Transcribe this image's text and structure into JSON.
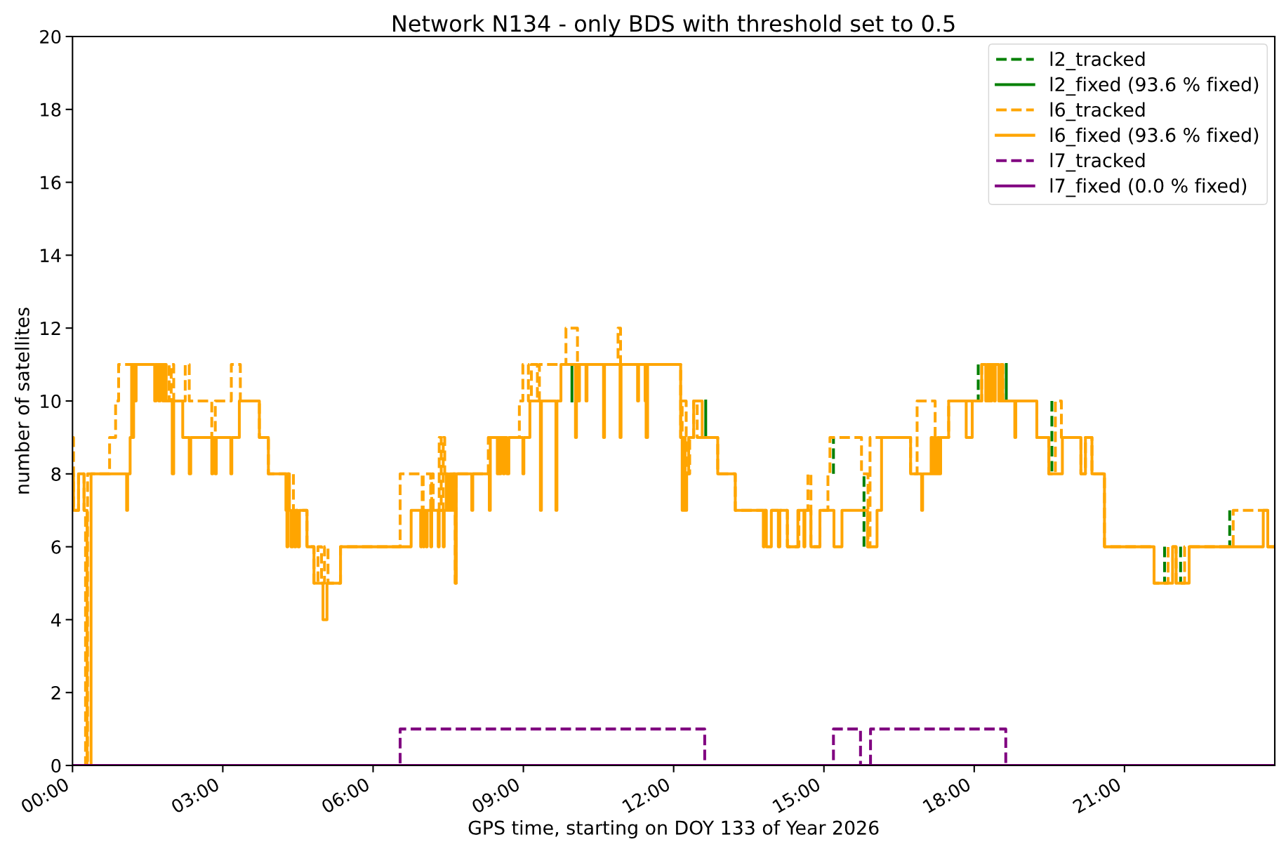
{
  "chart_data": {
    "type": "step",
    "title": "Network N134 - only BDS with threshold set to 0.5",
    "xlabel": "GPS time, starting on DOY 133 of Year 2026",
    "ylabel": "number of satellites",
    "xlim": [
      0,
      24
    ],
    "ylim": [
      0,
      20
    ],
    "xticks": [
      {
        "value": 0,
        "label": "00:00"
      },
      {
        "value": 3,
        "label": "03:00"
      },
      {
        "value": 6,
        "label": "06:00"
      },
      {
        "value": 9,
        "label": "09:00"
      },
      {
        "value": 12,
        "label": "12:00"
      },
      {
        "value": 15,
        "label": "15:00"
      },
      {
        "value": 18,
        "label": "18:00"
      },
      {
        "value": 21,
        "label": "21:00"
      }
    ],
    "yticks": [
      0,
      2,
      4,
      6,
      8,
      10,
      12,
      14,
      16,
      18,
      20
    ],
    "legend": "top right",
    "series": [
      {
        "name": "l2_tracked",
        "color": "#008000",
        "line_style": "dashed",
        "x": [
          15.19,
          15.19,
          null,
          15.8,
          15.8,
          null,
          18.08,
          18.08,
          null,
          19.55,
          19.55,
          null,
          21.8,
          21.8,
          null,
          22.12,
          22.12,
          null,
          23.1,
          23.1
        ],
        "values": [
          8,
          9,
          null,
          6,
          8,
          null,
          11,
          10,
          null,
          10,
          8,
          null,
          6,
          5,
          null,
          6,
          5,
          null,
          7,
          6
        ]
      },
      {
        "name": "l2_fixed (93.6 % fixed)",
        "color": "#008000",
        "line_style": "solid",
        "x": [
          9.97,
          9.97,
          null,
          12.64,
          12.64,
          null,
          18.64,
          18.64
        ],
        "values": [
          10,
          11,
          null,
          10,
          9,
          null,
          11,
          10
        ]
      },
      {
        "name": "l6_tracked",
        "color": "#ffa500",
        "line_style": "dashed",
        "x": [
          0,
          0.02,
          0.12,
          0.23,
          0.26,
          0.3,
          0.74,
          0.86,
          0.92,
          1.93,
          1.97,
          2.02,
          2.25,
          2.33,
          2.78,
          2.85,
          3.17,
          3.35,
          3.73,
          3.91,
          4.41,
          4.68,
          4.82,
          4.9,
          4.97,
          5.03,
          5.1,
          5.35,
          6.54,
          6.98,
          7.0,
          7.15,
          7.17,
          7.2,
          7.32,
          7.36,
          7.4,
          7.43,
          7.64,
          7.66,
          8.3,
          8.92,
          8.99,
          9.1,
          9.16,
          9.28,
          9.32,
          9.85,
          10.08,
          10.89,
          10.94,
          12.14,
          12.17,
          12.25,
          12.32,
          12.4,
          12.47,
          12.88,
          13.23,
          14.27,
          14.5,
          14.68,
          14.74,
          14.92,
          15.08,
          15.12,
          15.75,
          15.88,
          15.92,
          16.73,
          16.86,
          17.22,
          17.49,
          18.15,
          18.57,
          19.25,
          19.49,
          19.62,
          19.74,
          20.13,
          20.22,
          20.35,
          20.6,
          21.59,
          21.87,
          22.03,
          22.2,
          23.17,
          23.86,
          24
        ],
        "values": [
          9,
          7,
          8,
          7,
          0,
          8,
          9,
          10,
          11,
          10,
          11,
          10,
          11,
          10,
          9,
          10,
          11,
          10,
          9,
          8,
          7,
          6,
          5,
          6,
          5,
          6,
          5,
          6,
          8,
          7,
          8,
          7,
          8,
          7,
          9,
          7,
          9,
          8,
          5,
          8,
          9,
          10,
          11,
          10,
          11,
          10,
          11,
          12,
          11,
          12,
          11,
          9,
          10,
          8,
          9,
          10,
          9,
          8,
          7,
          6,
          7,
          8,
          6,
          7,
          8,
          9,
          8,
          6,
          9,
          8,
          10,
          9,
          10,
          11,
          10,
          9,
          8,
          10,
          9,
          8,
          9,
          8,
          6,
          5,
          6,
          5,
          6,
          7,
          6,
          6
        ]
      },
      {
        "name": "l6_fixed (93.6 % fixed)",
        "color": "#ffa500",
        "line_style": "solid",
        "x": [
          0,
          0.02,
          0.12,
          0.23,
          0.29,
          0.37,
          1.08,
          1.1,
          1.15,
          1.18,
          1.2,
          1.22,
          1.25,
          1.27,
          1.64,
          1.67,
          1.72,
          1.75,
          1.8,
          1.83,
          1.87,
          1.99,
          2.02,
          2.2,
          2.33,
          2.36,
          2.78,
          2.8,
          2.85,
          2.87,
          3.16,
          3.18,
          3.33,
          3.73,
          3.91,
          4.26,
          4.28,
          4.3,
          4.33,
          4.36,
          4.4,
          4.43,
          4.46,
          4.5,
          4.53,
          4.68,
          4.82,
          5.0,
          5.08,
          5.35,
          6.76,
          6.95,
          6.97,
          7.0,
          7.02,
          7.06,
          7.08,
          7.15,
          7.17,
          7.3,
          7.32,
          7.4,
          7.42,
          7.46,
          7.5,
          7.53,
          7.56,
          7.6,
          7.64,
          7.66,
          7.97,
          7.99,
          8.32,
          8.34,
          8.48,
          8.5,
          8.53,
          8.55,
          8.6,
          8.62,
          8.67,
          8.71,
          8.99,
          9.01,
          9.13,
          9.34,
          9.36,
          9.65,
          9.67,
          9.75,
          10.04,
          10.06,
          10.1,
          10.12,
          10.25,
          10.27,
          10.6,
          10.62,
          10.93,
          10.95,
          11.28,
          11.3,
          11.43,
          11.45,
          11.48,
          12.14,
          12.17,
          12.2,
          12.23,
          12.26,
          12.3,
          12.4,
          12.57,
          12.88,
          13.23,
          13.79,
          13.81,
          13.85,
          13.95,
          14.09,
          14.12,
          14.27,
          14.48,
          14.6,
          14.62,
          14.74,
          14.92,
          15.2,
          15.36,
          15.87,
          16.06,
          16.15,
          16.73,
          16.95,
          16.97,
          17.14,
          17.17,
          17.2,
          17.23,
          17.27,
          17.3,
          17.33,
          17.49,
          17.84,
          17.96,
          18.15,
          18.23,
          18.26,
          18.3,
          18.35,
          18.4,
          18.42,
          18.49,
          18.53,
          18.57,
          18.81,
          18.83,
          19.25,
          19.49,
          19.76,
          20.13,
          20.22,
          20.35,
          20.6,
          21.59,
          21.96,
          22.03,
          22.29,
          23.77,
          23.86,
          24
        ],
        "values": [
          8,
          7,
          8,
          7,
          0,
          8,
          7,
          8,
          9,
          11,
          9,
          11,
          10,
          11,
          10,
          11,
          10,
          11,
          10,
          11,
          10,
          8,
          10,
          9,
          8,
          9,
          8,
          9,
          8,
          9,
          8,
          9,
          10,
          9,
          8,
          7,
          6,
          8,
          7,
          6,
          7,
          6,
          7,
          6,
          7,
          6,
          5,
          4,
          5,
          6,
          7,
          6,
          7,
          6,
          7,
          6,
          7,
          6,
          7,
          6,
          7,
          6,
          7,
          8,
          7,
          8,
          7,
          8,
          5,
          8,
          7,
          8,
          7,
          9,
          8,
          9,
          8,
          9,
          8,
          9,
          8,
          9,
          8,
          9,
          10,
          7,
          10,
          7,
          10,
          11,
          9,
          11,
          10,
          11,
          10,
          11,
          9,
          11,
          9,
          11,
          10,
          11,
          10,
          9,
          11,
          9,
          7,
          9,
          7,
          8,
          9,
          10,
          9,
          8,
          7,
          6,
          7,
          6,
          7,
          6,
          7,
          6,
          7,
          6,
          7,
          6,
          7,
          6,
          7,
          6,
          7,
          9,
          8,
          7,
          8,
          9,
          8,
          9,
          8,
          9,
          8,
          9,
          10,
          9,
          10,
          11,
          10,
          11,
          10,
          11,
          10,
          11,
          10,
          11,
          10,
          9,
          10,
          9,
          8,
          9,
          8,
          9,
          8,
          6,
          5,
          6,
          5,
          6,
          7,
          6,
          6
        ]
      },
      {
        "name": "l7_tracked",
        "color": "#800080",
        "line_style": "dashed",
        "x": [
          0,
          6.54,
          12.62,
          15.19,
          15.73,
          15.93,
          18.63,
          24
        ],
        "values": [
          0,
          1,
          0,
          1,
          0,
          1,
          0,
          0
        ]
      },
      {
        "name": "l7_fixed (0.0 % fixed)",
        "color": "#800080",
        "line_style": "solid",
        "x": [
          0,
          24
        ],
        "values": [
          0,
          0
        ]
      }
    ]
  }
}
